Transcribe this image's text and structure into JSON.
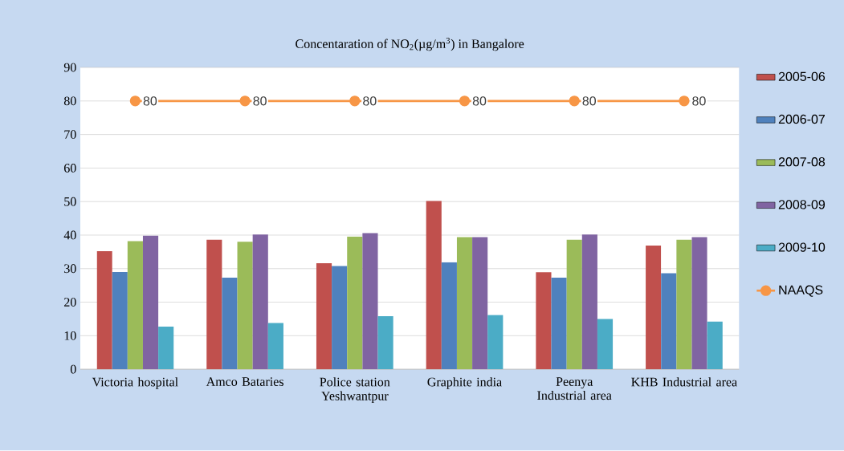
{
  "chart_data": {
    "type": "bar",
    "title": "Concentaration of NO$_{2}$(µg/m$^{3}$) in Bangalore",
    "categories": [
      "Victoria hospital",
      "Amco Bataries",
      "Police station Yeshwantpur",
      "Graphite india",
      "Peenya Industrial area",
      "KHB Industrial area"
    ],
    "series": [
      {
        "name": "2005-06",
        "color": "#c0504d",
        "values": [
          35.2,
          38.6,
          31.6,
          50.2,
          28.9,
          36.9
        ]
      },
      {
        "name": "2006-07",
        "color": "#4f81bd",
        "values": [
          29,
          27.3,
          30.8,
          31.9,
          27.3,
          28.6
        ]
      },
      {
        "name": "2007-08",
        "color": "#9bbb59",
        "values": [
          38.2,
          38,
          39.6,
          39.4,
          38.6,
          38.6
        ]
      },
      {
        "name": "2008-09",
        "color": "#8064a2",
        "values": [
          39.8,
          40.2,
          40.6,
          39.4,
          40.2,
          39.4
        ]
      },
      {
        "name": "2009-10",
        "color": "#4bacc6",
        "values": [
          12.7,
          13.8,
          15.8,
          16.2,
          15,
          14.2
        ]
      },
      {
        "name": "NAAQS",
        "type": "line",
        "color": "#f79646",
        "marker": "circle",
        "values": [
          80,
          80,
          80,
          80,
          80,
          80
        ],
        "value_labels": [
          "80",
          "80",
          "80",
          "80",
          "80",
          "80"
        ]
      }
    ],
    "ylim": [
      0,
      90
    ],
    "yticks": [
      0,
      10,
      20,
      30,
      40,
      50,
      60,
      70,
      80,
      90
    ],
    "grid": "y",
    "legend": "right"
  }
}
